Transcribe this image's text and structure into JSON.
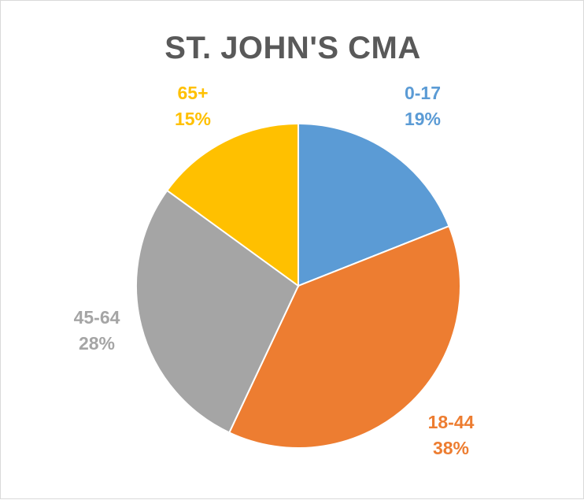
{
  "chart_data": {
    "type": "pie",
    "title": "ST. JOHN'S CMA",
    "categories": [
      "0-17",
      "18-44",
      "45-64",
      "65+"
    ],
    "values": [
      19,
      38,
      28,
      15
    ],
    "value_labels": [
      "19%",
      "38%",
      "28%",
      "15%"
    ],
    "colors": [
      "#5b9bd5",
      "#ed7d31",
      "#a5a5a5",
      "#ffc000"
    ],
    "start_angle_deg": 0,
    "direction": "clockwise",
    "legend": "none",
    "data_labels": "outside"
  }
}
